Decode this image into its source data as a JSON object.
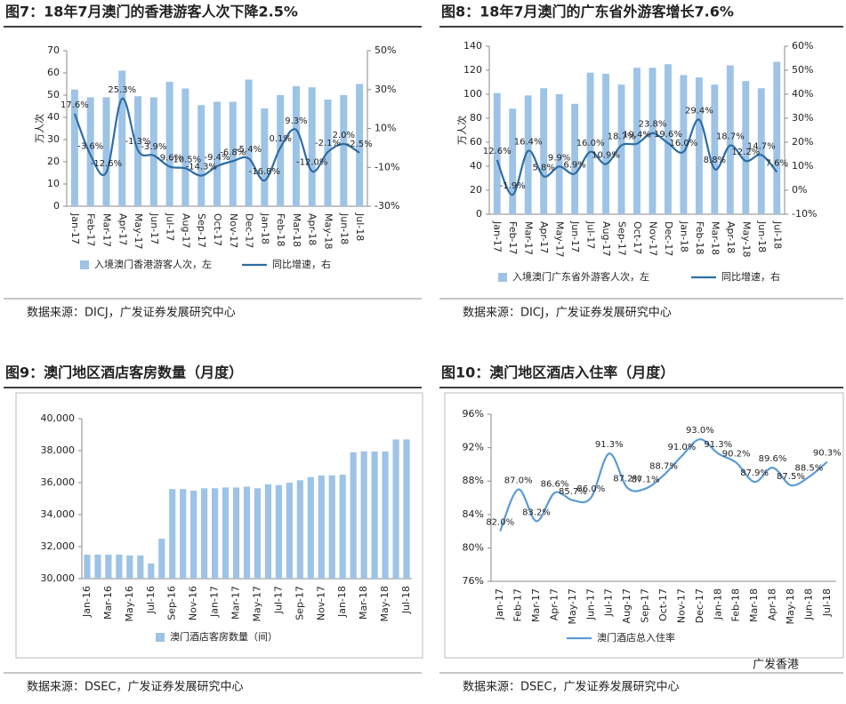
{
  "chart_data": [
    {
      "type": "combo",
      "title": "图7：18年7月澳门的香港游客人次下降2.5%",
      "source": "数据来源：DICJ，广发证券发展研究中心",
      "ylabel": "万人次",
      "categories": [
        "Jan-17",
        "Feb-17",
        "Mar-17",
        "Apr-17",
        "May-17",
        "Jun-17",
        "Jul-17",
        "Aug-17",
        "Sep-17",
        "Oct-17",
        "Nov-17",
        "Dec-17",
        "Jan-18",
        "Feb-18",
        "Mar-18",
        "Apr-18",
        "May-18",
        "Jun-18",
        "Jul-18"
      ],
      "series": [
        {
          "name": "入境澳门香港游客人次，左",
          "color": "#9dc3e6",
          "kind": "bar",
          "values": [
            52.5,
            49,
            49,
            61,
            49.5,
            49,
            56,
            53,
            45.5,
            47,
            47,
            57,
            44,
            50,
            54,
            53.5,
            48,
            50,
            55
          ]
        },
        {
          "name": "同比增速，右",
          "color": "#2e6da4",
          "kind": "line",
          "axis": "y2",
          "values": [
            17.6,
            -3.6,
            -12.6,
            25.3,
            -1.3,
            -3.9,
            -9.6,
            -10.5,
            -14.3,
            -9.4,
            -6.8,
            -5.4,
            -16.8,
            0.1,
            9.3,
            -12.0,
            -2.1,
            2.0,
            -2.5
          ],
          "value_labels": [
            "17.6%",
            "-3.6%",
            "-12.6%",
            "25.3%",
            "-1.3%",
            "-3.9%",
            "-9.6%",
            "-10.5%",
            "-14.3%",
            "-9.4%",
            "-6.8%",
            "-5.4%",
            "-16.8%",
            "0.1%",
            "9.3%",
            "-12.0%",
            "-2.1%",
            "2.0%",
            "-2.5%"
          ]
        }
      ],
      "ylim": [
        0,
        70
      ],
      "yticks": [
        0,
        10,
        20,
        30,
        40,
        50,
        60,
        70
      ],
      "y2lim": [
        -30,
        50
      ],
      "y2ticks": [
        {
          "value": -30,
          "label": "-30%"
        },
        {
          "value": -10,
          "label": "-10%"
        },
        {
          "value": 10,
          "label": "10%"
        },
        {
          "value": 30,
          "label": "30%"
        },
        {
          "value": 50,
          "label": "50%"
        }
      ]
    },
    {
      "type": "combo",
      "title": "图8：18年7月澳门的广东省外游客增长7.6%",
      "source": "数据来源：DICJ，广发证券发展研究中心",
      "ylabel": "万人次",
      "categories": [
        "Jan-17",
        "Feb-17",
        "Mar-17",
        "Apr-17",
        "May-17",
        "Jun-17",
        "Jul-17",
        "Aug-17",
        "Sep-17",
        "Oct-17",
        "Nov-17",
        "Dec-17",
        "Jan-18",
        "Feb-18",
        "Mar-18",
        "Apr-18",
        "May-18",
        "Jun-18",
        "Jul-18"
      ],
      "series": [
        {
          "name": "入境澳门广东省外游客人次，左",
          "color": "#9dc3e6",
          "kind": "bar",
          "values": [
            101,
            88,
            99,
            105,
            100,
            92,
            118,
            117,
            108,
            122,
            122,
            125,
            116,
            114,
            108,
            124,
            111,
            105,
            127
          ]
        },
        {
          "name": "同比增速，右",
          "color": "#2e6da4",
          "kind": "line",
          "axis": "y2",
          "values": [
            12.6,
            -1.9,
            16.4,
            5.8,
            9.9,
            6.9,
            16.0,
            10.9,
            18.7,
            19.4,
            23.8,
            19.6,
            16.0,
            29.4,
            8.8,
            18.7,
            12.2,
            14.7,
            7.6
          ],
          "value_labels": [
            "12.6%",
            "-1.9%",
            "16.4%",
            "5.8%",
            "9.9%",
            "6.9%",
            "16.0%",
            "10.9%",
            "18.7%",
            "19.4%",
            "23.8%",
            "19.6%",
            "16.0%",
            "29.4%",
            "8.8%",
            "18.7%",
            "12.2%",
            "14.7%",
            "7.6%"
          ]
        }
      ],
      "ylim": [
        0,
        140
      ],
      "yticks": [
        0,
        20,
        40,
        60,
        80,
        100,
        120,
        140
      ],
      "y2lim": [
        -10,
        60
      ],
      "y2ticks": [
        {
          "value": -10,
          "label": "-10%"
        },
        {
          "value": 0,
          "label": "0%"
        },
        {
          "value": 10,
          "label": "10%"
        },
        {
          "value": 20,
          "label": "20%"
        },
        {
          "value": 30,
          "label": "30%"
        },
        {
          "value": 40,
          "label": "40%"
        },
        {
          "value": 50,
          "label": "50%"
        },
        {
          "value": 60,
          "label": "60%"
        }
      ]
    },
    {
      "type": "bar",
      "title": "图9：澳门地区酒店客房数量（月度）",
      "source": "数据来源：DSEC，广发证券发展研究中心",
      "categories": [
        "Jan-16",
        null,
        "Mar-16",
        null,
        "May-16",
        null,
        "Jul-16",
        null,
        "Sep-16",
        null,
        "Nov-16",
        null,
        "Jan-17",
        null,
        "Mar-17",
        null,
        "May-17",
        null,
        "Jul-17",
        null,
        "Sep-17",
        null,
        "Nov-17",
        null,
        "Jan-18",
        null,
        "Mar-18",
        null,
        "May-18",
        null,
        "Jul-18"
      ],
      "series": [
        {
          "name": "澳门酒店客房数量（间）",
          "color": "#9dc3e6",
          "kind": "bar",
          "values": [
            31500,
            31500,
            31500,
            31500,
            31450,
            31450,
            30950,
            32500,
            35600,
            35600,
            35500,
            35650,
            35650,
            35700,
            35700,
            35750,
            35650,
            35900,
            35850,
            36000,
            36150,
            36350,
            36450,
            36450,
            36500,
            37900,
            37950,
            37950,
            37950,
            38700,
            38700
          ]
        }
      ],
      "ylim": [
        30000,
        40000
      ],
      "yticks": [
        {
          "value": 30000,
          "label": "30,000"
        },
        {
          "value": 32000,
          "label": "32,000"
        },
        {
          "value": 34000,
          "label": "34,000"
        },
        {
          "value": 36000,
          "label": "36,000"
        },
        {
          "value": 38000,
          "label": "38,000"
        },
        {
          "value": 40000,
          "label": "40,000"
        }
      ]
    },
    {
      "type": "line",
      "title": "图10：澳门地区酒店入住率（月度）",
      "source": "数据来源：DSEC，广发证券发展研究中心",
      "categories": [
        "Jan-17",
        "Feb-17",
        "Mar-17",
        "Apr-17",
        "May-17",
        "Jun-17",
        "Jul-17",
        "Aug-17",
        "Sep-17",
        "Oct-17",
        "Nov-17",
        "Dec-17",
        "Jan-18",
        "Feb-18",
        "Mar-18",
        "Apr-18",
        "May-18",
        "Jun-18",
        "Jul-18"
      ],
      "series": [
        {
          "name": "澳门酒店总入住率",
          "color": "#5b9bd5",
          "kind": "line",
          "values": [
            82.0,
            87.0,
            83.2,
            86.6,
            85.7,
            86.0,
            91.3,
            87.2,
            87.1,
            88.7,
            91.0,
            93.0,
            91.3,
            90.2,
            87.9,
            89.6,
            87.5,
            88.5,
            90.3
          ],
          "value_labels": [
            "82.0%",
            "87.0%",
            "83.2%",
            "86.6%",
            "85.7%",
            "86.0%",
            "91.3%",
            "87.2%",
            "87.1%",
            "88.7%",
            "91.0%",
            "93.0%",
            "91.3%",
            "90.2%",
            "87.9%",
            "89.6%",
            "87.5%",
            "88.5%",
            "90.3%"
          ]
        }
      ],
      "ylim": [
        76,
        96
      ],
      "yticks": [
        {
          "value": 76,
          "label": "76%"
        },
        {
          "value": 80,
          "label": "80%"
        },
        {
          "value": 84,
          "label": "84%"
        },
        {
          "value": 88,
          "label": "88%"
        },
        {
          "value": 92,
          "label": "92%"
        },
        {
          "value": 96,
          "label": "96%"
        }
      ]
    }
  ],
  "watermark": "广发香港"
}
